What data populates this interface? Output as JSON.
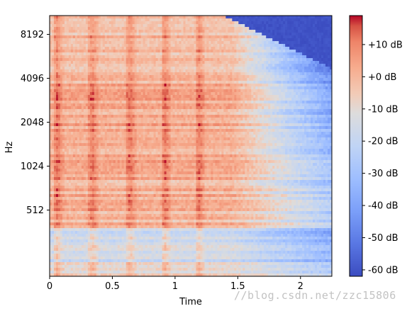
{
  "chart_data": {
    "type": "heatmap",
    "subtype": "spectrogram",
    "xlabel": "Time",
    "ylabel": "Hz",
    "x_ticks": [
      0,
      0.5,
      1,
      1.5,
      2
    ],
    "x_tick_labels": [
      "0",
      "0.5",
      "1",
      "1.5",
      "2"
    ],
    "xlim": [
      0,
      2.25
    ],
    "y_scale": "log2",
    "y_ticks": [
      512,
      1024,
      2048,
      4096,
      8192
    ],
    "y_tick_labels": [
      "512",
      "1024",
      "2048",
      "4096",
      "8192"
    ],
    "ylim": [
      180,
      11025
    ],
    "colormap": "coolwarm",
    "colorbar": {
      "range": [
        -62,
        19
      ],
      "ticks": [
        10,
        0,
        -10,
        -20,
        -30,
        -40,
        -50,
        -60
      ],
      "tick_labels": [
        "+10 dB",
        "+0 dB",
        "-10 dB",
        "-20 dB",
        "-30 dB",
        "-40 dB",
        "-50 dB",
        "-60 dB"
      ]
    },
    "onsets_s": [
      0.05,
      0.33,
      0.63,
      0.91,
      1.18
    ],
    "decay_tail_start_s": 1.45,
    "grid": false
  },
  "watermark": "//blog.csdn.net/zzc15806"
}
